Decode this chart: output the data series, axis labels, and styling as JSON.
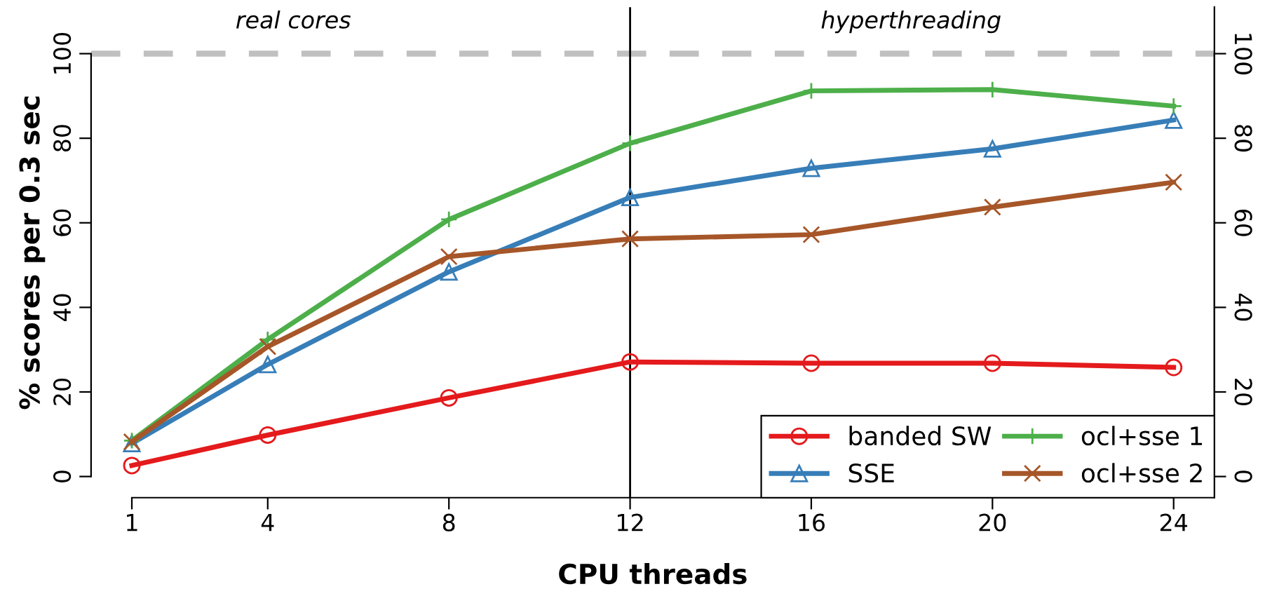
{
  "chart_data": {
    "type": "line",
    "xlabel": "CPU threads",
    "ylabel": "% scores per 0.3 sec",
    "x": [
      1,
      4,
      8,
      12,
      16,
      20,
      24
    ],
    "series": [
      {
        "name": "banded SW",
        "color": "#e41a1c",
        "marker": "circle",
        "values": [
          2.6,
          9.8,
          18.6,
          27.1,
          26.8,
          26.8,
          25.8
        ]
      },
      {
        "name": "SSE",
        "color": "#377eb8",
        "marker": "triangle",
        "values": [
          7.8,
          26.5,
          48.4,
          66,
          72.9,
          77.5,
          84.3
        ]
      },
      {
        "name": "ocl+sse 1",
        "color": "#4daf4a",
        "marker": "cross",
        "values": [
          8.5,
          32.4,
          60.8,
          78.8,
          91.2,
          91.5,
          87.6
        ]
      },
      {
        "name": "ocl+sse 2",
        "color": "#a65628",
        "marker": "x",
        "values": [
          8.2,
          30.7,
          52,
          56.2,
          57.2,
          63.7,
          69.6
        ]
      }
    ],
    "xlim": [
      0.1,
      24.9
    ],
    "xticks": [
      1,
      4,
      8,
      12,
      16,
      20,
      24
    ],
    "ylim": [
      -5,
      111
    ],
    "yticks": [
      0,
      20,
      40,
      60,
      80,
      100
    ],
    "y2lim": [
      -5,
      111
    ],
    "y2ticks": [
      0,
      20,
      40,
      60,
      80,
      100
    ],
    "ref_lines": [
      {
        "axis": "y",
        "value": 100,
        "color": "#c0c0c0",
        "line_style": "dashed"
      },
      {
        "axis": "x",
        "value": 12,
        "color": "#000000",
        "line_style": "solid"
      }
    ],
    "annotations": [
      "real cores",
      "hyperthreading"
    ],
    "grid": false,
    "legend": "bottom right",
    "line_style": "solid"
  }
}
